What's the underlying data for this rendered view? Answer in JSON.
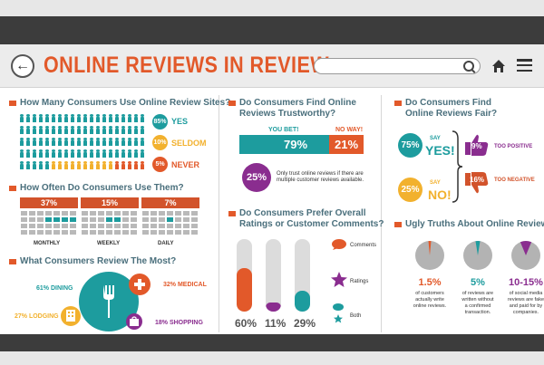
{
  "header": {
    "title": "ONLINE REVIEWS IN REVIEW",
    "back_icon": "back-arrow-icon",
    "search_icon": "search-icon",
    "home_icon": "home-icon",
    "menu_icon": "hamburger-menu-icon"
  },
  "colors": {
    "orange": "#e2592a",
    "teal": "#1d9c9e",
    "yellow": "#f2b12e",
    "purple": "#8a2d8f",
    "gray": "#b3b3b3"
  },
  "col1": {
    "usage": {
      "title": "How Many Consumers Use Online Review Sites?",
      "items": [
        {
          "pct": "85%",
          "label": "YES"
        },
        {
          "pct": "10%",
          "label": "SELDOM"
        },
        {
          "pct": "5%",
          "label": "NEVER"
        }
      ]
    },
    "frequency": {
      "title": "How Often Do Consumers Use Them?",
      "items": [
        {
          "pct": "37%",
          "label": "MONTHLY"
        },
        {
          "pct": "15%",
          "label": "WEEKLY"
        },
        {
          "pct": "7%",
          "label": "DAILY"
        }
      ]
    },
    "what": {
      "title": "What Consumers Review The Most?",
      "items": [
        {
          "text": "61% DINING"
        },
        {
          "text": "32% MEDICAL"
        },
        {
          "text": "27% LODGING"
        },
        {
          "text": "18% SHOPPING"
        }
      ]
    }
  },
  "col2": {
    "trust": {
      "title_l1": "Do Consumers Find Online",
      "title_l2": "Reviews Trustworthy?",
      "yes_label": "YOU BET!",
      "no_label": "NO WAY!",
      "yes_pct": "79%",
      "no_pct": "21%",
      "only_pct": "25%",
      "only_text_l1": "Only trust online reviews if there are",
      "only_text_l2": "multiple customer reviews available."
    },
    "prefer": {
      "title_l1": "Do Consumers Prefer Overall",
      "title_l2": "Ratings or Customer Comments?",
      "bars": [
        {
          "pct": "60%",
          "value": 60
        },
        {
          "pct": "11%",
          "value": 11
        },
        {
          "pct": "29%",
          "value": 29
        }
      ],
      "legend": [
        {
          "label": "Comments"
        },
        {
          "label": "Ratings"
        },
        {
          "label": "Both"
        }
      ]
    }
  },
  "col3": {
    "fair": {
      "title_l1": "Do Consumers Find",
      "title_l2": "Online Reviews Fair?",
      "yes_pct": "75%",
      "yes_say": "SAY",
      "yes_word": "YES!",
      "no_pct": "25%",
      "no_say": "SAY",
      "no_word": "NO!",
      "pos_pct": "9%",
      "pos_label": "TOO POSITIVE",
      "neg_pct": "16%",
      "neg_label": "TOO NEGATIVE"
    },
    "truths": {
      "title": "Ugly Truths About Online Reviews",
      "items": [
        {
          "pct": "1.5%",
          "text": [
            "of customers",
            "actually write",
            "online reviews."
          ],
          "value": 1.5
        },
        {
          "pct": "5%",
          "text": [
            "of reviews are",
            "written without",
            "a confirmed",
            "transaction."
          ],
          "value": 5
        },
        {
          "pct": "10-15%",
          "text": [
            "of social media",
            "reviews are fake",
            "and paid for by",
            "companies."
          ],
          "value": 12.5
        }
      ]
    }
  }
}
